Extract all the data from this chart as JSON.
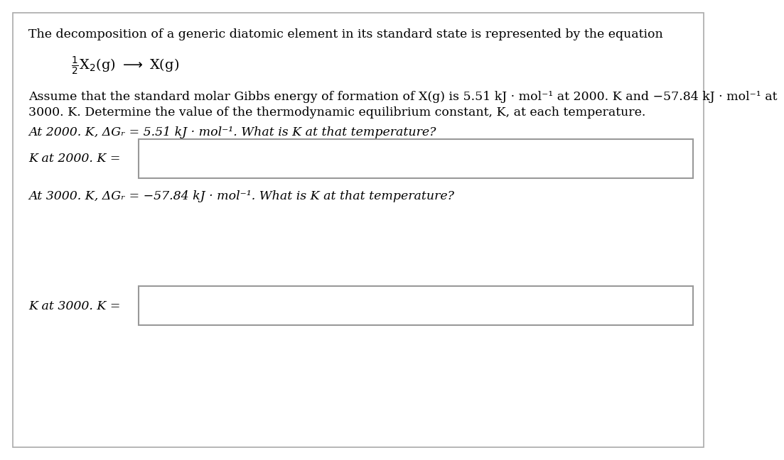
{
  "background_color": "#ffffff",
  "text_color": "#000000",
  "border_color": "#aaaaaa",
  "box_border_color": "#999999",
  "line1": "The decomposition of a generic diatomic element in its standard state is represented by the equation",
  "para_line1": "Assume that the standard molar Gibbs energy of formation of X(g) is 5.51 kJ · mol⁻¹ at 2000. K and −57.84 kJ · mol⁻¹ at",
  "para_line2": "3000. K. Determine the value of the thermodynamic equilibrium constant, K, at each temperature.",
  "q1": "At 2000. K, ΔGᵣ = 5.51 kJ · mol⁻¹. What is K at that temperature?",
  "label1": "K at 2000. K =",
  "q2": "At 3000. K, ΔGᵣ = −57.84 kJ · mol⁻¹. What is K at that temperature?",
  "label2": "K at 3000. K =",
  "main_fontsize": 12.5,
  "eq_fontsize": 14,
  "fig_width": 9.88,
  "fig_height": 6.28
}
